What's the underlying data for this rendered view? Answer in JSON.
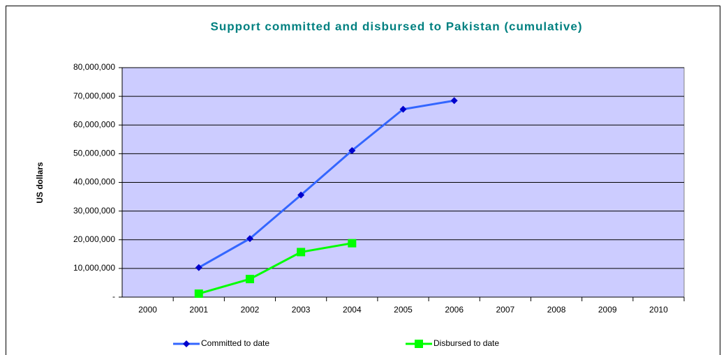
{
  "chart_data": {
    "type": "line",
    "title": "Support committed and disbursed to Pakistan (cumulative)",
    "y_label": "US dollars",
    "categories": [
      "2000",
      "2001",
      "2002",
      "2003",
      "2004",
      "2005",
      "2006",
      "2007",
      "2008",
      "2009",
      "2010"
    ],
    "series": [
      {
        "name": "Committed to date",
        "color": "#3366ff",
        "marker_color": "#0000cc",
        "marker": "diamond",
        "values": [
          null,
          10300000,
          20400000,
          35600000,
          51100000,
          65500000,
          68500000,
          null,
          null,
          null,
          null
        ]
      },
      {
        "name": "Disbursed to date",
        "color": "#00ff00",
        "marker_color": "#00ff00",
        "marker": "square",
        "values": [
          null,
          1200000,
          6300000,
          15700000,
          18800000,
          null,
          null,
          null,
          null,
          null,
          null
        ]
      }
    ],
    "ylim": [
      0,
      80000000
    ],
    "yticks": [
      {
        "value": 0,
        "label": "-"
      },
      {
        "value": 10000000,
        "label": "10,000,000"
      },
      {
        "value": 20000000,
        "label": "20,000,000"
      },
      {
        "value": 30000000,
        "label": "30,000,000"
      },
      {
        "value": 40000000,
        "label": "40,000,000"
      },
      {
        "value": 50000000,
        "label": "50,000,000"
      },
      {
        "value": 60000000,
        "label": "60,000,000"
      },
      {
        "value": 70000000,
        "label": "70,000,000"
      },
      {
        "value": 80000000,
        "label": "80,000,000"
      }
    ],
    "grid": true,
    "plot_background": "#ccccff",
    "legend": "bottom"
  }
}
